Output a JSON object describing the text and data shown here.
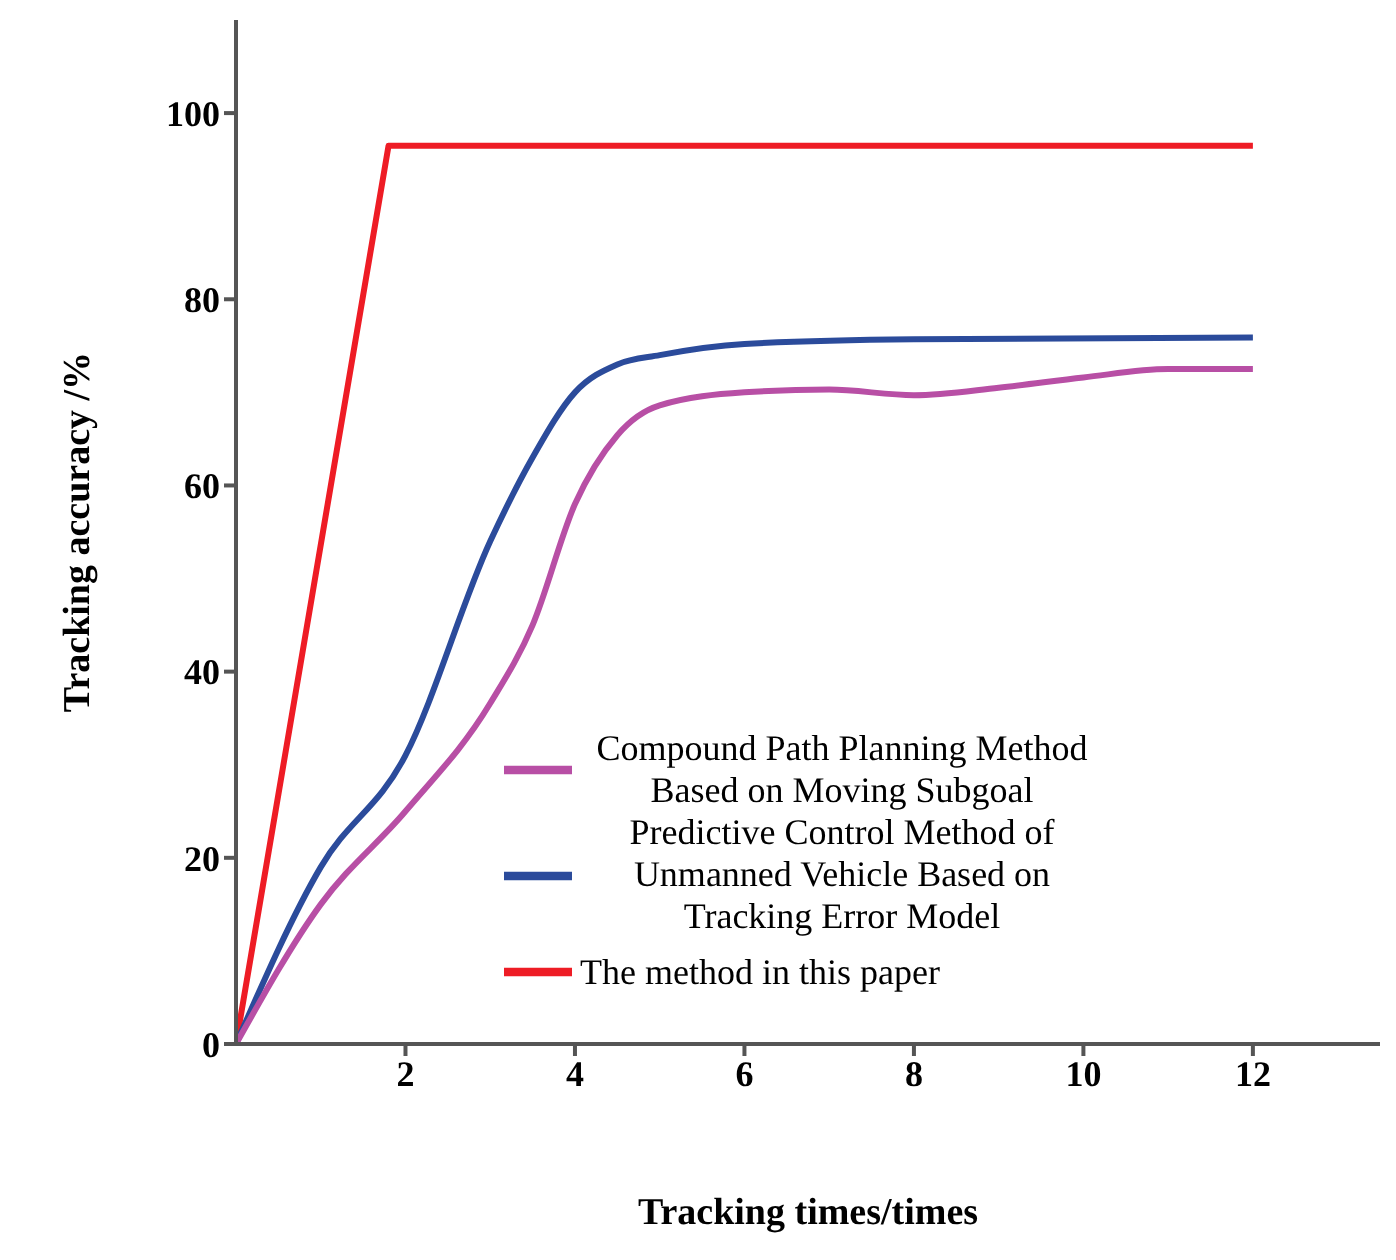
{
  "chart_data": {
    "type": "line",
    "xlabel": "Tracking times/times",
    "ylabel": "Tracking accuracy /%",
    "xlim": [
      0,
      13.5
    ],
    "ylim": [
      0,
      110
    ],
    "xticks": [
      2,
      4,
      6,
      8,
      10,
      12
    ],
    "yticks": [
      0,
      20,
      40,
      60,
      80,
      100
    ],
    "grid": false,
    "legend": "right",
    "marker": "none",
    "line_style": "solid",
    "series": [
      {
        "name": "The method in this paper",
        "color": "#ee1c25",
        "x": [
          0,
          1.8,
          12
        ],
        "values": [
          0,
          96.5,
          96.5
        ]
      },
      {
        "name": "Predictive Control Method of Unmanned Vehicle Based on Tracking Error Model",
        "color": "#2b4b9b",
        "x": [
          0,
          1,
          2,
          3,
          3.5,
          4,
          4.5,
          5,
          6,
          8,
          12
        ],
        "values": [
          0,
          19,
          31,
          54,
          63,
          70,
          73,
          74,
          75.2,
          75.7,
          75.9
        ]
      },
      {
        "name": "Compound Path Planning Method Based on Moving Subgoal",
        "color": "#b84fa5",
        "x": [
          0,
          1,
          2,
          3,
          3.5,
          4,
          4.5,
          5,
          6,
          7,
          8,
          9,
          10,
          11,
          12
        ],
        "values": [
          0,
          15,
          25,
          36.6,
          45,
          58,
          65.4,
          68.6,
          70,
          70.3,
          69.7,
          70.5,
          71.6,
          72.5,
          72.5
        ]
      }
    ]
  }
}
